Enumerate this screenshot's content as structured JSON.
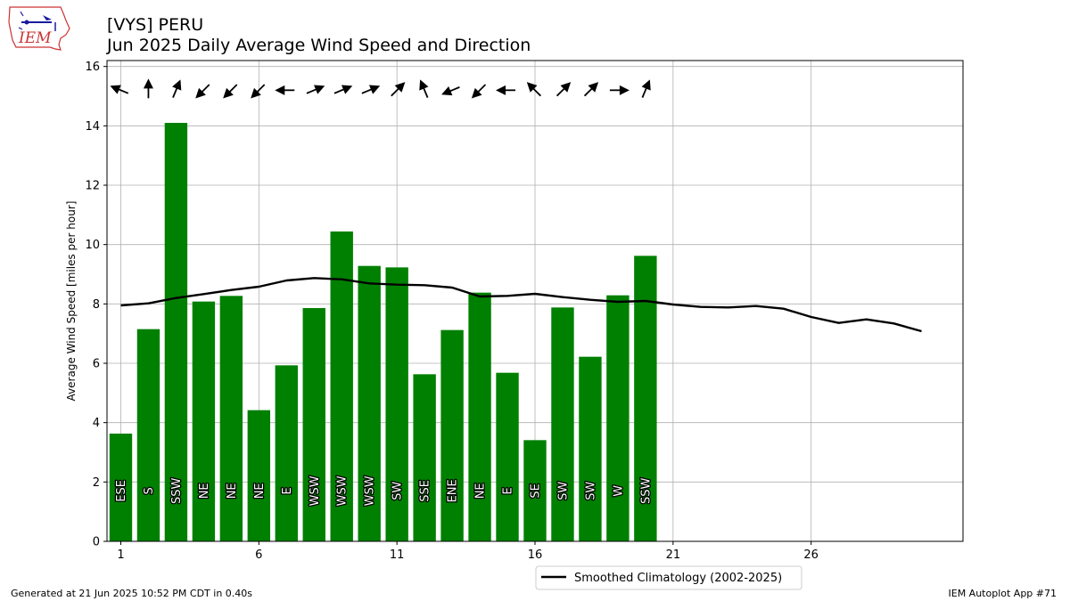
{
  "header": {
    "title_line1": "[VYS] PERU",
    "title_line2": "Jun 2025 Daily Average Wind Speed and Direction",
    "logo_text": "IEM"
  },
  "footer": {
    "left": "Generated at 21 Jun 2025 10:52 PM CDT in 0.40s",
    "right": "IEM Autoplot App #71"
  },
  "chart_data": {
    "type": "bar",
    "title": "[VYS] PERU",
    "subtitle": "Jun 2025 Daily Average Wind Speed and Direction",
    "xlabel": "",
    "ylabel": "Average Wind Speed [miles per hour]",
    "xlim": [
      0.5,
      31.5
    ],
    "ylim": [
      0,
      16.2
    ],
    "xticks": [
      1,
      6,
      11,
      16,
      21,
      26
    ],
    "yticks": [
      0,
      2,
      4,
      6,
      8,
      10,
      12,
      14,
      16
    ],
    "grid": true,
    "legend_position": "bottom-center",
    "bar_color": "#008000",
    "line_color": "#000000",
    "arrow_color": "#000000",
    "days": [
      1,
      2,
      3,
      4,
      5,
      6,
      7,
      8,
      9,
      10,
      11,
      12,
      13,
      14,
      15,
      16,
      17,
      18,
      19,
      20
    ],
    "speed": [
      3.63,
      7.15,
      14.1,
      8.08,
      8.27,
      4.42,
      5.93,
      7.86,
      10.44,
      9.28,
      9.23,
      5.63,
      7.12,
      8.38,
      5.68,
      3.41,
      7.88,
      6.22,
      8.29,
      9.62
    ],
    "direction_labels": [
      "ESE",
      "S",
      "SSW",
      "NE",
      "NE",
      "NE",
      "E",
      "WSW",
      "WSW",
      "WSW",
      "SW",
      "SSE",
      "ENE",
      "NE",
      "E",
      "SE",
      "SW",
      "SW",
      "W",
      "SSW"
    ],
    "series": [
      {
        "name": "Smoothed Climatology (2002-2025)",
        "type": "line",
        "x": [
          1,
          2,
          3,
          4,
          5,
          6,
          7,
          8,
          9,
          10,
          11,
          12,
          13,
          14,
          15,
          16,
          17,
          18,
          19,
          20,
          21,
          22,
          23,
          24,
          25,
          26,
          27,
          28,
          29,
          30
        ],
        "values": [
          7.95,
          8.02,
          8.2,
          8.33,
          8.47,
          8.58,
          8.79,
          8.87,
          8.83,
          8.69,
          8.65,
          8.63,
          8.55,
          8.25,
          8.27,
          8.34,
          8.23,
          8.14,
          8.07,
          8.1,
          7.98,
          7.9,
          7.88,
          7.93,
          7.84,
          7.56,
          7.36,
          7.48,
          7.34,
          7.08
        ]
      }
    ]
  }
}
